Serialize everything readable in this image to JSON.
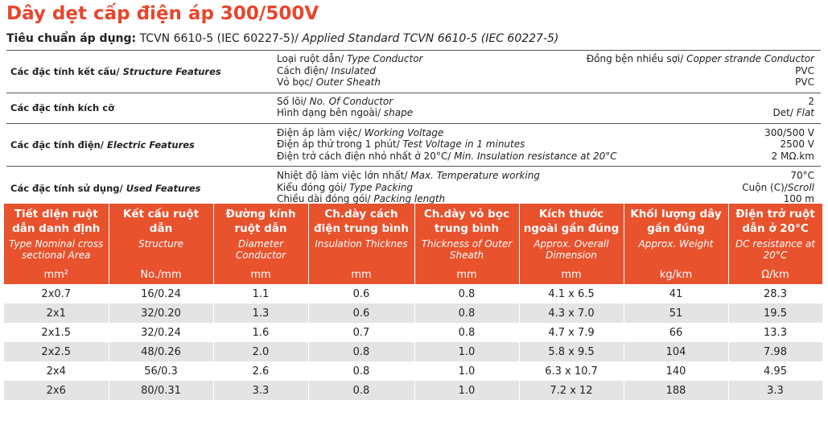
{
  "header": {
    "title": "Dây dẹt cấp điện áp 300/500V",
    "standard_label": "Tiêu chuẩn áp dụng:",
    "standard_vi": " TCVN 6610-5 (IEC 60227-5)/",
    "standard_en": " Applied Standard TCVN 6610-5 (IEC 60227-5)"
  },
  "features": [
    {
      "label": "Các đặc tính kết cấu/ ",
      "label_en": "Structure Features",
      "rows": [
        {
          "property": "Loại ruột dẫn/ ",
          "property_en": "Type Conductor",
          "value": "Đồng bện nhiều sợi/ ",
          "value_en": "Copper strande Conductor"
        },
        {
          "property": "Cách điện/ ",
          "property_en": "Insulated",
          "value": "PVC"
        },
        {
          "property": "Vỏ bọc/ ",
          "property_en": "Outer Sheath",
          "value": "PVC"
        }
      ]
    },
    {
      "label": "Các đặc tính kích cỡ",
      "rows": [
        {
          "property": "Số lõi/ ",
          "property_en": "No. Of Conductor",
          "value": "2"
        },
        {
          "property": "Hình dạng bên ngoài/ ",
          "property_en": "shape",
          "value": "Det/ ",
          "value_en": "Flat"
        }
      ]
    },
    {
      "label": "Các đặc tính điện/ ",
      "label_en": "Electric Features",
      "rows": [
        {
          "property": "Điện áp làm việc/ ",
          "property_en": "Working Voltage",
          "value": "300/500 V"
        },
        {
          "property": "Điện áp thử trong 1 phút/ ",
          "property_en": "Test Voltage in 1 minutes",
          "value": "2500 V"
        },
        {
          "property": "Điện trở cách điện nhỏ nhất ở 20°C/ ",
          "property_en": "Min. Insulation resistance at 20°C",
          "value": "2 MΩ.km"
        }
      ]
    },
    {
      "label": "Các đặc tính sử dụng/ ",
      "label_en": "Used Features",
      "rows": [
        {
          "property": "Nhiệt độ làm việc lớn nhất/ ",
          "property_en": "Max. Temperature working",
          "value": "70°C"
        },
        {
          "property": "Kiểu đóng gói/ ",
          "property_en": "Type Packing",
          "value": "Cuộn (C)/",
          "value_en": "Scroll"
        },
        {
          "property": "Chiều dài đóng gói/ ",
          "property_en": "Packing length",
          "value": "100 m"
        }
      ]
    }
  ],
  "table": {
    "columns": [
      {
        "vi": "Tiết diện ruột dẫn danh định",
        "en": "Type Nominal cross sectional Area",
        "unit": "mm²"
      },
      {
        "vi": "Kết cấu ruột dẫn",
        "en": "Structure",
        "unit": "No./mm"
      },
      {
        "vi": "Đường kính ruột dẫn",
        "en": "Diameter Conductor",
        "unit": "mm"
      },
      {
        "vi": "Ch.dày cách điện trung bình",
        "en": "Insulation Thicknes",
        "unit": "mm"
      },
      {
        "vi": "Ch.dày vỏ bọc trung bình",
        "en": "Thickness of Outer Sheath",
        "unit": "mm"
      },
      {
        "vi": "Kích thước ngoài gần đúng",
        "en": "Approx. Overall Dimension",
        "unit": "mm"
      },
      {
        "vi": "Khối lượng dây gần đúng",
        "en": "Approx. Weight",
        "unit": "kg/km"
      },
      {
        "vi": "Điện trở ruột dẫn ở 20°C",
        "en": "DC resistance at 20°C",
        "unit": "Ω/km"
      }
    ],
    "rows": [
      [
        "2x0.7",
        "16/0.24",
        "1.1",
        "0.6",
        "0.8",
        "4.1 x 6.5",
        "41",
        "28.3"
      ],
      [
        "2x1",
        "32/0.20",
        "1.3",
        "0.6",
        "0.8",
        "4.3 x 7.0",
        "51",
        "19.5"
      ],
      [
        "2x1.5",
        "32/0.24",
        "1.6",
        "0.7",
        "0.8",
        "4.7 x 7.9",
        "66",
        "13.3"
      ],
      [
        "2x2.5",
        "48/0.26",
        "2.0",
        "0.8",
        "1.0",
        "5.8 x 9.5",
        "104",
        "7.98"
      ],
      [
        "2x4",
        "56/0.3",
        "2.6",
        "0.8",
        "1.0",
        "6.3 x 10.7",
        "140",
        "4.95"
      ],
      [
        "2x6",
        "80/0.31",
        "3.3",
        "0.8",
        "1.0",
        "7.2 x 12",
        "188",
        "3.3"
      ]
    ]
  }
}
